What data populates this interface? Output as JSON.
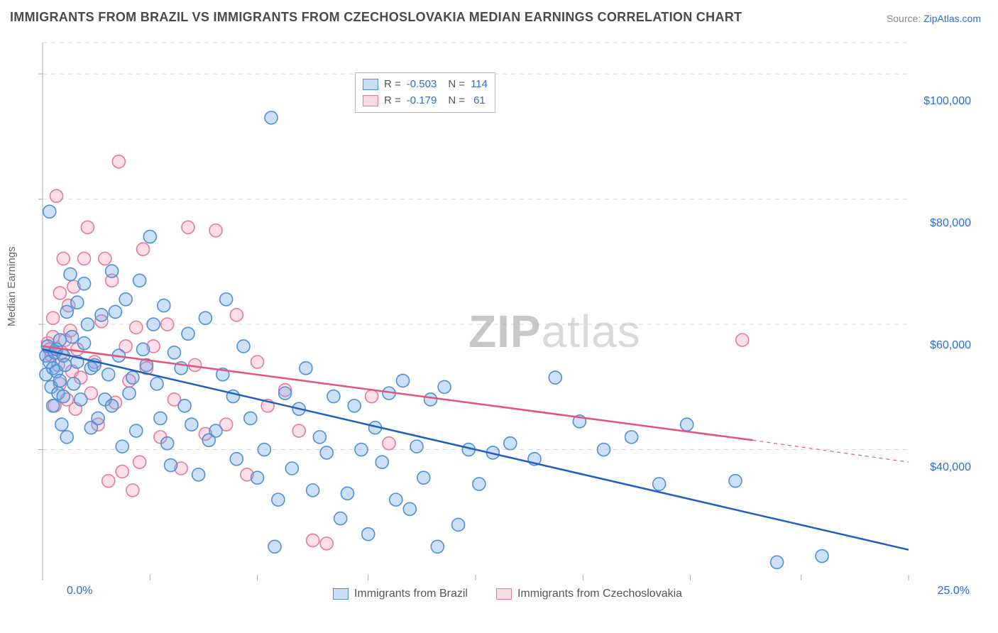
{
  "title": "IMMIGRANTS FROM BRAZIL VS IMMIGRANTS FROM CZECHOSLOVAKIA MEDIAN EARNINGS CORRELATION CHART",
  "source_label": "Source:",
  "source_name": "ZipAtlas.com",
  "ylabel": "Median Earnings",
  "watermark_a": "ZIP",
  "watermark_b": "atlas",
  "chart": {
    "type": "scatter",
    "background_color": "#ffffff",
    "grid_color": "#d7d7d7",
    "axis_tick_color": "#aaaaaa",
    "xlim": [
      0,
      25
    ],
    "ylim": [
      20000,
      105000
    ],
    "x_tick_positions": [
      0,
      3.1,
      6.2,
      9.4,
      12.5,
      15.6,
      18.7,
      21.9,
      25
    ],
    "x_tick_labels_visible": {
      "0": "0.0%",
      "25": "25.0%"
    },
    "y_tick_positions": [
      40000,
      60000,
      80000,
      100000
    ],
    "y_tick_labels": [
      "$40,000",
      "$60,000",
      "$80,000",
      "$100,000"
    ],
    "marker_radius": 9,
    "marker_stroke_width": 1.6,
    "trend_line_width": 2.5,
    "series": [
      {
        "name": "Immigrants from Brazil",
        "fill_color": "rgba(110,170,235,0.35)",
        "stroke_color": "#4f8fd8",
        "line_color": "#1f5fc0",
        "R": "-0.503",
        "N": "114",
        "trend": {
          "x1": 0,
          "y1": 56000,
          "x2": 25,
          "y2": 24000
        },
        "points": [
          [
            0.1,
            55000
          ],
          [
            0.1,
            52000
          ],
          [
            0.15,
            56500
          ],
          [
            0.2,
            54000
          ],
          [
            0.2,
            78000
          ],
          [
            0.25,
            50000
          ],
          [
            0.3,
            53000
          ],
          [
            0.3,
            47000
          ],
          [
            0.35,
            55500
          ],
          [
            0.4,
            56000
          ],
          [
            0.4,
            52500
          ],
          [
            0.45,
            49000
          ],
          [
            0.5,
            51000
          ],
          [
            0.5,
            57500
          ],
          [
            0.55,
            44000
          ],
          [
            0.6,
            55000
          ],
          [
            0.6,
            48500
          ],
          [
            0.65,
            53500
          ],
          [
            0.7,
            62000
          ],
          [
            0.7,
            42000
          ],
          [
            0.8,
            68000
          ],
          [
            0.85,
            58000
          ],
          [
            0.9,
            50500
          ],
          [
            1.0,
            63500
          ],
          [
            1.0,
            54000
          ],
          [
            1.1,
            48000
          ],
          [
            1.2,
            57000
          ],
          [
            1.2,
            66500
          ],
          [
            1.3,
            60000
          ],
          [
            1.4,
            53000
          ],
          [
            1.4,
            43500
          ],
          [
            1.5,
            53500
          ],
          [
            1.6,
            45000
          ],
          [
            1.7,
            61500
          ],
          [
            1.8,
            48000
          ],
          [
            1.9,
            52000
          ],
          [
            2.0,
            68500
          ],
          [
            2.0,
            47000
          ],
          [
            2.1,
            62000
          ],
          [
            2.2,
            55000
          ],
          [
            2.3,
            40500
          ],
          [
            2.4,
            64000
          ],
          [
            2.5,
            49000
          ],
          [
            2.6,
            51500
          ],
          [
            2.7,
            43000
          ],
          [
            2.8,
            67000
          ],
          [
            2.9,
            56000
          ],
          [
            3.0,
            53500
          ],
          [
            3.1,
            74000
          ],
          [
            3.2,
            60000
          ],
          [
            3.3,
            50500
          ],
          [
            3.4,
            45000
          ],
          [
            3.5,
            63000
          ],
          [
            3.6,
            41000
          ],
          [
            3.7,
            37500
          ],
          [
            3.8,
            55500
          ],
          [
            4.0,
            53000
          ],
          [
            4.1,
            47000
          ],
          [
            4.2,
            58500
          ],
          [
            4.3,
            44000
          ],
          [
            4.5,
            36000
          ],
          [
            4.7,
            61000
          ],
          [
            4.8,
            41500
          ],
          [
            5.0,
            43000
          ],
          [
            5.2,
            52000
          ],
          [
            5.3,
            64000
          ],
          [
            5.5,
            48500
          ],
          [
            5.6,
            38500
          ],
          [
            5.8,
            56500
          ],
          [
            6.0,
            45000
          ],
          [
            6.2,
            35500
          ],
          [
            6.4,
            40000
          ],
          [
            6.6,
            93000
          ],
          [
            6.7,
            24500
          ],
          [
            6.8,
            32000
          ],
          [
            7.0,
            49000
          ],
          [
            7.2,
            37000
          ],
          [
            7.4,
            46500
          ],
          [
            7.6,
            53000
          ],
          [
            7.8,
            33500
          ],
          [
            8.0,
            42000
          ],
          [
            8.2,
            39500
          ],
          [
            8.4,
            48500
          ],
          [
            8.6,
            29000
          ],
          [
            8.8,
            33000
          ],
          [
            9.0,
            47000
          ],
          [
            9.2,
            40000
          ],
          [
            9.4,
            26500
          ],
          [
            9.6,
            43500
          ],
          [
            9.8,
            38000
          ],
          [
            10.0,
            49000
          ],
          [
            10.2,
            32000
          ],
          [
            10.4,
            51000
          ],
          [
            10.6,
            30500
          ],
          [
            10.8,
            40500
          ],
          [
            11.0,
            35500
          ],
          [
            11.2,
            48000
          ],
          [
            11.4,
            24500
          ],
          [
            11.6,
            50000
          ],
          [
            12.0,
            28000
          ],
          [
            12.3,
            40000
          ],
          [
            12.6,
            34500
          ],
          [
            13.0,
            39500
          ],
          [
            13.5,
            41000
          ],
          [
            14.2,
            38500
          ],
          [
            14.8,
            51500
          ],
          [
            15.5,
            44500
          ],
          [
            16.2,
            40000
          ],
          [
            17.0,
            42000
          ],
          [
            17.8,
            34500
          ],
          [
            18.6,
            44000
          ],
          [
            20.0,
            35000
          ],
          [
            21.2,
            22000
          ],
          [
            22.5,
            23000
          ]
        ]
      },
      {
        "name": "Immigrants from Czechoslovakia",
        "fill_color": "rgba(245,150,175,0.30)",
        "stroke_color": "#e77a99",
        "line_color": "#e25578",
        "R": "-0.179",
        "N": "61",
        "trend": {
          "x1": 0,
          "y1": 56500,
          "x2": 20.5,
          "y2": 41500
        },
        "trend_dash_ext": {
          "x1": 20.5,
          "y1": 41500,
          "x2": 25,
          "y2": 38000
        },
        "points": [
          [
            0.15,
            57000
          ],
          [
            0.2,
            56000
          ],
          [
            0.25,
            55000
          ],
          [
            0.3,
            58000
          ],
          [
            0.3,
            61000
          ],
          [
            0.35,
            47000
          ],
          [
            0.4,
            80500
          ],
          [
            0.45,
            53500
          ],
          [
            0.5,
            65000
          ],
          [
            0.5,
            50500
          ],
          [
            0.55,
            55500
          ],
          [
            0.6,
            70500
          ],
          [
            0.65,
            57500
          ],
          [
            0.7,
            48000
          ],
          [
            0.75,
            63000
          ],
          [
            0.8,
            59000
          ],
          [
            0.85,
            52500
          ],
          [
            0.9,
            66000
          ],
          [
            0.95,
            46500
          ],
          [
            1.0,
            56000
          ],
          [
            1.1,
            51500
          ],
          [
            1.2,
            70500
          ],
          [
            1.3,
            75500
          ],
          [
            1.4,
            49000
          ],
          [
            1.5,
            54000
          ],
          [
            1.6,
            44000
          ],
          [
            1.7,
            60500
          ],
          [
            1.8,
            70500
          ],
          [
            1.9,
            35000
          ],
          [
            2.0,
            67000
          ],
          [
            2.1,
            47500
          ],
          [
            2.2,
            86000
          ],
          [
            2.3,
            36500
          ],
          [
            2.4,
            56500
          ],
          [
            2.5,
            51000
          ],
          [
            2.6,
            33500
          ],
          [
            2.7,
            59500
          ],
          [
            2.8,
            38000
          ],
          [
            2.9,
            72000
          ],
          [
            3.0,
            53000
          ],
          [
            3.2,
            56500
          ],
          [
            3.4,
            42000
          ],
          [
            3.6,
            60000
          ],
          [
            3.8,
            48000
          ],
          [
            4.0,
            37000
          ],
          [
            4.2,
            75500
          ],
          [
            4.4,
            53500
          ],
          [
            4.7,
            42500
          ],
          [
            5.0,
            75000
          ],
          [
            5.3,
            44000
          ],
          [
            5.6,
            61500
          ],
          [
            5.9,
            36000
          ],
          [
            6.2,
            54000
          ],
          [
            6.5,
            47000
          ],
          [
            7.0,
            49500
          ],
          [
            7.4,
            43000
          ],
          [
            7.8,
            25500
          ],
          [
            8.2,
            25000
          ],
          [
            9.5,
            48500
          ],
          [
            10.0,
            41000
          ],
          [
            20.2,
            57500
          ]
        ]
      }
    ]
  }
}
